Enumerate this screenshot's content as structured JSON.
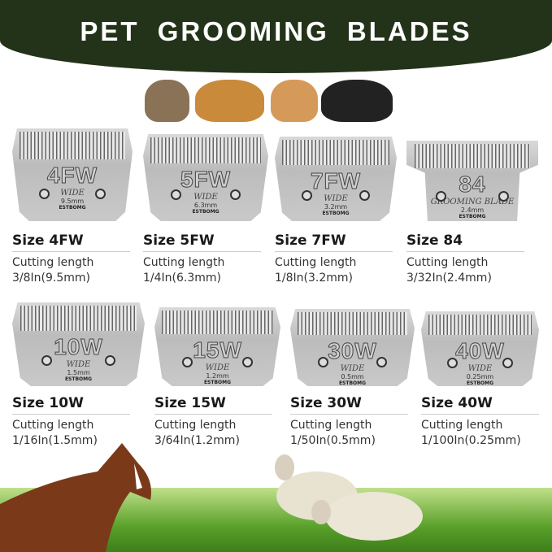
{
  "title": "PET GROOMING BLADES",
  "brand": "ESTBOMG",
  "blades": [
    {
      "code": "4FW",
      "engraving": "WIDE",
      "mm": "9.5mm",
      "size": "Size 4FW",
      "cut_label": "Cutting length",
      "cut_value": "3/8In(9.5mm)"
    },
    {
      "code": "5FW",
      "engraving": "WIDE",
      "mm": "6.3mm",
      "size": "Size 5FW",
      "cut_label": "Cutting length",
      "cut_value": "1/4In(6.3mm)"
    },
    {
      "code": "7FW",
      "engraving": "WIDE",
      "mm": "3.2mm",
      "size": "Size 7FW",
      "cut_label": "Cutting length",
      "cut_value": "1/8In(3.2mm)"
    },
    {
      "code": "84",
      "engraving": "GROOMING BLADE",
      "mm": "2.4mm",
      "size": "Size 84",
      "cut_label": "Cutting length",
      "cut_value": "3/32In(2.4mm)"
    },
    {
      "code": "10W",
      "engraving": "WIDE",
      "mm": "1.5mm",
      "size": "Size 10W",
      "cut_label": "Cutting length",
      "cut_value": "1/16In(1.5mm)"
    },
    {
      "code": "15W",
      "engraving": "WIDE",
      "mm": "1.2mm",
      "size": "Size 15W",
      "cut_label": "Cutting length",
      "cut_value": "3/64In(1.2mm)"
    },
    {
      "code": "30W",
      "engraving": "WIDE",
      "mm": "0.5mm",
      "size": "Size 30W",
      "cut_label": "Cutting length",
      "cut_value": "1/50In(0.5mm)"
    },
    {
      "code": "40W",
      "engraving": "WIDE",
      "mm": "0.25mm",
      "size": "Size 40W",
      "cut_label": "Cutting length",
      "cut_value": "1/100In(0.25mm)"
    }
  ],
  "colors": {
    "header": "#23331a",
    "grass": "#5aa12a"
  }
}
